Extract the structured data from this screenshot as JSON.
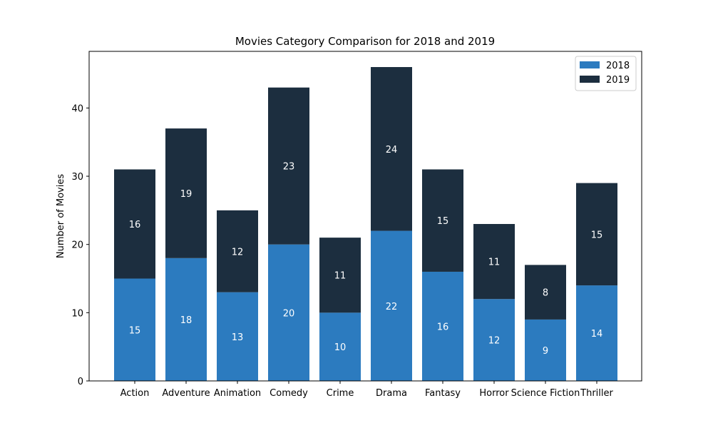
{
  "chart_data": {
    "type": "bar",
    "stacked": true,
    "title": "Movies Category Comparison for 2018 and 2019",
    "xlabel": "",
    "ylabel": "Number of Movies",
    "categories": [
      "Action",
      "Adventure",
      "Animation",
      "Comedy",
      "Crime",
      "Drama",
      "Fantasy",
      "Horror",
      "Science Fiction",
      "Thriller"
    ],
    "series": [
      {
        "name": "2018",
        "color": "#2c7bbf",
        "values": [
          15,
          18,
          13,
          20,
          10,
          22,
          16,
          12,
          9,
          14
        ]
      },
      {
        "name": "2019",
        "color": "#1c2e3f",
        "values": [
          16,
          19,
          12,
          23,
          11,
          24,
          15,
          11,
          8,
          15
        ]
      }
    ],
    "ylim": [
      0,
      48.3
    ],
    "yticks": [
      0,
      10,
      20,
      30,
      40
    ],
    "grid": false,
    "legend_position": "top-right"
  }
}
